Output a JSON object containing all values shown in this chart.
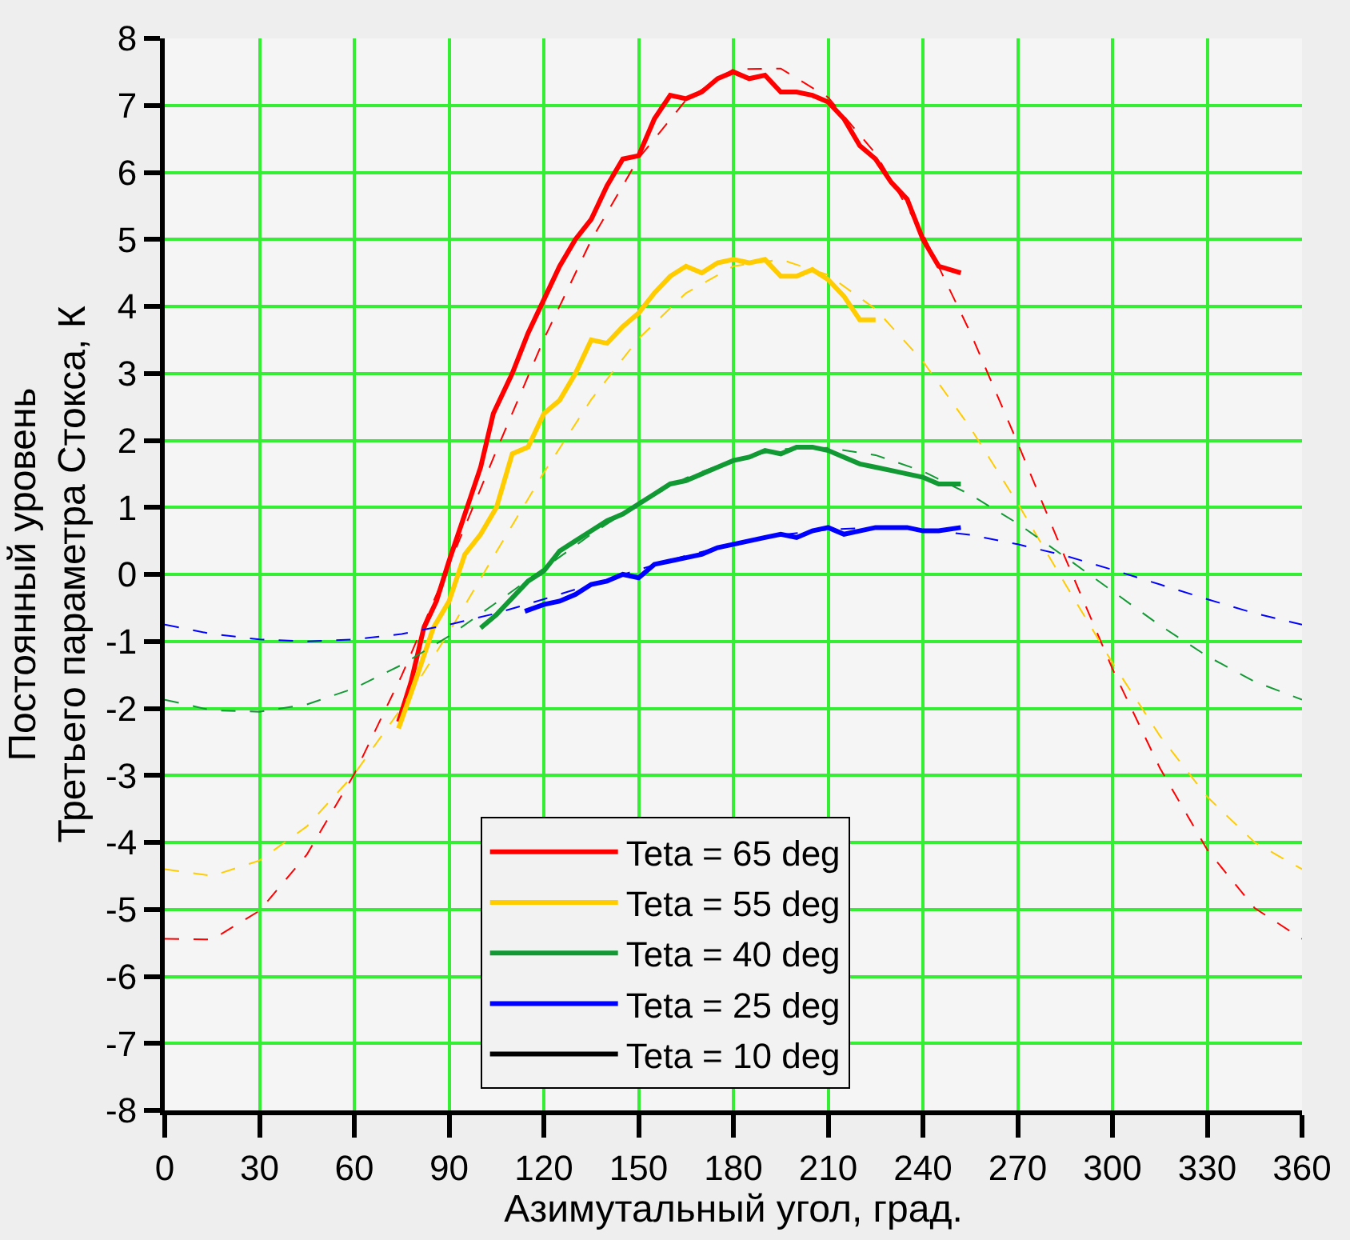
{
  "chart_data": {
    "type": "line",
    "xlabel": "Азимутальный угол, град.",
    "ylabel": "Постоянный уровень\nТретьего параметра Стокса, К",
    "xlim": [
      0,
      360
    ],
    "xticks": [
      0,
      30,
      60,
      90,
      120,
      150,
      180,
      210,
      240,
      270,
      300,
      330,
      360
    ],
    "ylim": [
      -8,
      8
    ],
    "yticks": [
      -8,
      -7,
      -6,
      -5,
      -4,
      -3,
      -2,
      -1,
      0,
      1,
      2,
      3,
      4,
      5,
      6,
      7,
      8
    ],
    "grid": true,
    "legend": "bottom",
    "line_style": "solid",
    "marker": "none",
    "series": [
      {
        "name": "Teta = 65 deg",
        "color": "#ff0000",
        "x": [
          74,
          78,
          82,
          86,
          90,
          95,
          100,
          104,
          110,
          115,
          120,
          125,
          130,
          135,
          140,
          145,
          150,
          155,
          160,
          165,
          170,
          175,
          180,
          185,
          190,
          195,
          200,
          205,
          210,
          215,
          220,
          225,
          230,
          235,
          240,
          245,
          252
        ],
        "values": [
          -2.2,
          -1.6,
          -0.8,
          -0.4,
          0.2,
          0.9,
          1.6,
          2.4,
          3.0,
          3.6,
          4.1,
          4.6,
          5.0,
          5.3,
          5.8,
          6.2,
          6.25,
          6.8,
          7.15,
          7.1,
          7.2,
          7.4,
          7.5,
          7.4,
          7.45,
          7.2,
          7.2,
          7.15,
          7.05,
          6.8,
          6.4,
          6.2,
          5.85,
          5.6,
          5.0,
          4.6,
          4.5
        ]
      },
      {
        "name": "Teta = 55 deg",
        "color": "#ffcc00",
        "x": [
          74,
          80,
          85,
          90,
          95,
          100,
          105,
          110,
          115,
          120,
          125,
          130,
          135,
          140,
          145,
          150,
          155,
          160,
          165,
          170,
          175,
          180,
          185,
          190,
          195,
          200,
          205,
          210,
          215,
          220,
          225
        ],
        "values": [
          -2.3,
          -1.5,
          -0.8,
          -0.4,
          0.3,
          0.6,
          1.0,
          1.8,
          1.9,
          2.4,
          2.6,
          3.0,
          3.5,
          3.45,
          3.7,
          3.9,
          4.2,
          4.45,
          4.6,
          4.5,
          4.65,
          4.7,
          4.65,
          4.7,
          4.45,
          4.45,
          4.55,
          4.4,
          4.15,
          3.8,
          3.8
        ]
      },
      {
        "name": "Teta = 40 deg",
        "color": "#119933",
        "x": [
          100,
          105,
          110,
          115,
          120,
          125,
          130,
          135,
          140,
          145,
          150,
          155,
          160,
          165,
          170,
          175,
          180,
          185,
          190,
          195,
          200,
          205,
          210,
          215,
          220,
          225,
          230,
          235,
          240,
          245,
          252
        ],
        "values": [
          -0.8,
          -0.6,
          -0.35,
          -0.1,
          0.05,
          0.35,
          0.5,
          0.65,
          0.8,
          0.9,
          1.05,
          1.2,
          1.35,
          1.4,
          1.5,
          1.6,
          1.7,
          1.75,
          1.85,
          1.8,
          1.9,
          1.9,
          1.85,
          1.75,
          1.65,
          1.6,
          1.55,
          1.5,
          1.45,
          1.35,
          1.35
        ]
      },
      {
        "name": "Teta = 25 deg",
        "color": "#0000ff",
        "x": [
          114,
          120,
          125,
          130,
          135,
          140,
          145,
          150,
          155,
          160,
          165,
          170,
          175,
          180,
          185,
          190,
          195,
          200,
          205,
          210,
          215,
          220,
          225,
          230,
          235,
          240,
          245,
          252
        ],
        "values": [
          -0.55,
          -0.45,
          -0.4,
          -0.3,
          -0.15,
          -0.1,
          0.0,
          -0.05,
          0.15,
          0.2,
          0.25,
          0.3,
          0.4,
          0.45,
          0.5,
          0.55,
          0.6,
          0.55,
          0.65,
          0.7,
          0.6,
          0.65,
          0.7,
          0.7,
          0.7,
          0.65,
          0.65,
          0.7
        ]
      },
      {
        "name": "Teta = 10 deg",
        "color": "#000000"
      },
      {
        "color": "#ff0000",
        "line_style": "dashed",
        "x": [
          0,
          15,
          30,
          45,
          60,
          75,
          90,
          105,
          120,
          135,
          150,
          165,
          180,
          195,
          210,
          225,
          240,
          255,
          270,
          285,
          300,
          315,
          330,
          345,
          360
        ],
        "values": [
          -5.44,
          -5.45,
          -5.02,
          -4.18,
          -2.98,
          -1.51,
          0.14,
          1.85,
          3.51,
          4.99,
          6.21,
          7.08,
          7.54,
          7.55,
          7.12,
          6.28,
          5.08,
          3.61,
          1.96,
          0.25,
          -1.41,
          -2.89,
          -4.11,
          -4.98,
          -5.44
        ]
      },
      {
        "color": "#ffcc00",
        "line_style": "dashed",
        "x": [
          0,
          15,
          30,
          45,
          60,
          75,
          90,
          105,
          120,
          135,
          150,
          165,
          180,
          195,
          210,
          225,
          240,
          255,
          270,
          285,
          300,
          315,
          330,
          345,
          360
        ],
        "values": [
          -4.4,
          -4.5,
          -4.27,
          -3.76,
          -2.98,
          -1.99,
          -0.86,
          0.34,
          1.52,
          2.61,
          3.52,
          4.2,
          4.6,
          4.7,
          4.47,
          3.96,
          3.18,
          2.19,
          1.06,
          -0.14,
          -1.32,
          -2.41,
          -3.32,
          -4.0,
          -4.4
        ]
      },
      {
        "color": "#119933",
        "line_style": "dashed",
        "x": [
          0,
          15,
          30,
          45,
          60,
          75,
          90,
          105,
          120,
          135,
          150,
          165,
          180,
          195,
          210,
          225,
          240,
          255,
          270,
          285,
          300,
          315,
          330,
          345,
          360
        ],
        "values": [
          -1.87,
          -2.03,
          -2.05,
          -1.94,
          -1.7,
          -1.35,
          -0.92,
          -0.42,
          0.09,
          0.6,
          1.06,
          1.44,
          1.71,
          1.87,
          1.89,
          1.78,
          1.54,
          1.19,
          0.76,
          0.26,
          -0.25,
          -0.76,
          -1.22,
          -1.6,
          -1.87
        ]
      },
      {
        "color": "#0000ff",
        "line_style": "dashed",
        "x": [
          0,
          15,
          30,
          45,
          60,
          75,
          90,
          105,
          120,
          135,
          150,
          165,
          180,
          195,
          210,
          225,
          240,
          255,
          270,
          285,
          300,
          315,
          330,
          345,
          360
        ],
        "values": [
          -0.75,
          -0.89,
          -0.97,
          -1.0,
          -0.97,
          -0.89,
          -0.75,
          -0.58,
          -0.37,
          -0.15,
          0.07,
          0.28,
          0.45,
          0.59,
          0.67,
          0.7,
          0.67,
          0.59,
          0.45,
          0.28,
          0.07,
          -0.15,
          -0.37,
          -0.58,
          -0.75
        ]
      }
    ]
  }
}
